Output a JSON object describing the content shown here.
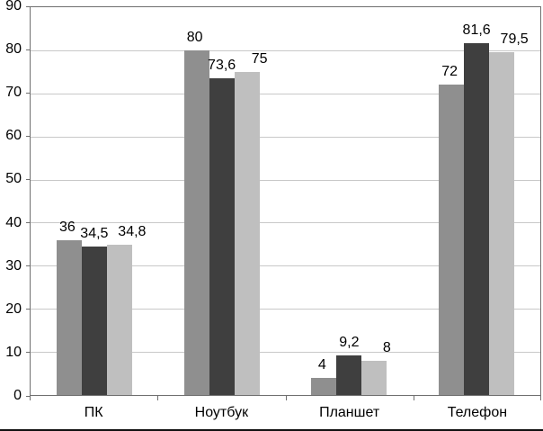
{
  "chart_data": {
    "type": "bar",
    "title": "",
    "xlabel": "",
    "ylabel": "",
    "categories": [
      "ПК",
      "Ноутбук",
      "Планшет",
      "Телефон"
    ],
    "series": [
      {
        "name": "series-1",
        "color": "#8f8f8f",
        "values": [
          36,
          80,
          4,
          72
        ],
        "labels": [
          "36",
          "80",
          "4",
          "72"
        ],
        "label_dx": -2
      },
      {
        "name": "series-2",
        "color": "#3f3f3f",
        "values": [
          34.5,
          73.6,
          9.2,
          81.6
        ],
        "labels": [
          "34,5",
          "73,6",
          "9,2",
          "81,6"
        ],
        "label_dx": 0
      },
      {
        "name": "series-3",
        "color": "#bfbfbf",
        "values": [
          34.8,
          75,
          8,
          79.5
        ],
        "labels": [
          "34,8",
          "75",
          "8",
          "79,5"
        ],
        "label_dx": 14
      }
    ],
    "ylim": [
      0,
      90
    ],
    "yticks": [
      0,
      10,
      20,
      30,
      40,
      50,
      60,
      70,
      80,
      90
    ],
    "grid": true,
    "legend": "none"
  }
}
